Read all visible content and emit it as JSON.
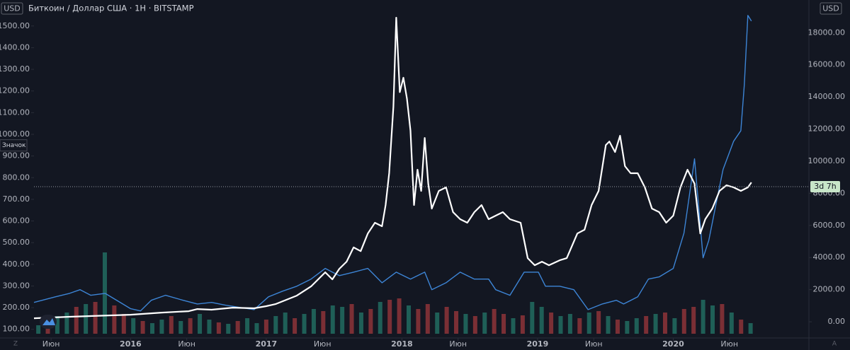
{
  "chart_data": {
    "type": "line",
    "title": "Биткоин / Доллар США · 1H · BITSTAMP",
    "axis_unit": "USD",
    "y2_unit": "USD",
    "xlim": [
      2015.288,
      2021.0
    ],
    "xticks": [
      {
        "value": 2015.414,
        "label": "Июн"
      },
      {
        "value": 2016,
        "label": "2016"
      },
      {
        "value": 2016.414,
        "label": "Июн"
      },
      {
        "value": 2017,
        "label": "2017"
      },
      {
        "value": 2017.414,
        "label": "Июн"
      },
      {
        "value": 2018,
        "label": "2018"
      },
      {
        "value": 2018.414,
        "label": "Июн"
      },
      {
        "value": 2019,
        "label": "2019"
      },
      {
        "value": 2019.414,
        "label": "Июн"
      },
      {
        "value": 2020,
        "label": "2020"
      },
      {
        "value": 2020.414,
        "label": "Июн"
      }
    ],
    "ylim": [
      60,
      1620
    ],
    "yticks": [
      {
        "value": 100,
        "label": "100.00"
      },
      {
        "value": 200,
        "label": "200.00"
      },
      {
        "value": 300,
        "label": "300.00"
      },
      {
        "value": 400,
        "label": "400.00"
      },
      {
        "value": 500,
        "label": "500.00"
      },
      {
        "value": 600,
        "label": "600.00"
      },
      {
        "value": 700,
        "label": "700.00"
      },
      {
        "value": 800,
        "label": "800.00"
      },
      {
        "value": 900,
        "label": "900.00"
      },
      {
        "value": 1000,
        "label": "1000.00"
      },
      {
        "value": 1100,
        "label": "1100.00"
      },
      {
        "value": 1200,
        "label": "1200.00"
      },
      {
        "value": 1300,
        "label": "1300.00"
      },
      {
        "value": 1400,
        "label": "1400.00"
      },
      {
        "value": 1500,
        "label": "1500.00"
      }
    ],
    "y2lim": [
      -1010,
      20040
    ],
    "y2ticks": [
      {
        "value": 0,
        "label": "0.00"
      },
      {
        "value": 2000,
        "label": "2000.00"
      },
      {
        "value": 4000,
        "label": "4000.00"
      },
      {
        "value": 6000,
        "label": "6000.00"
      },
      {
        "value": 8000,
        "label": "8000.00"
      },
      {
        "value": 10000,
        "label": "10000.00"
      },
      {
        "value": 12000,
        "label": "12000.00"
      },
      {
        "value": 14000,
        "label": "14000.00"
      },
      {
        "value": 16000,
        "label": "16000.00"
      },
      {
        "value": 18000,
        "label": "18000.00"
      }
    ],
    "series": [
      {
        "color": "#3d85d6",
        "axis": "y",
        "x": [
          2015.288,
          2015.445,
          2015.55,
          2015.628,
          2015.707,
          2015.812,
          2015.942,
          2016.0,
          2016.073,
          2016.152,
          2016.257,
          2016.387,
          2016.492,
          2016.597,
          2016.702,
          2016.806,
          2016.911,
          2017.016,
          2017.12,
          2017.225,
          2017.33,
          2017.435,
          2017.487,
          2017.539,
          2017.644,
          2017.749,
          2017.853,
          2017.958,
          2018.063,
          2018.168,
          2018.22,
          2018.325,
          2018.429,
          2018.534,
          2018.639,
          2018.691,
          2018.796,
          2018.901,
          2019.006,
          2019.058,
          2019.163,
          2019.267,
          2019.372,
          2019.477,
          2019.581,
          2019.634,
          2019.738,
          2019.817,
          2019.896,
          2020.0,
          2020.079,
          2020.131,
          2020.157,
          2020.184,
          2020.22,
          2020.262,
          2020.314,
          2020.367,
          2020.445,
          2020.498,
          2020.524,
          2020.55,
          2020.576
        ],
        "values": [
          224,
          250,
          266,
          283,
          257,
          266,
          217,
          195,
          185,
          234,
          257,
          234,
          217,
          224,
          211,
          201,
          191,
          250,
          276,
          299,
          332,
          381,
          364,
          348,
          364,
          381,
          315,
          364,
          332,
          364,
          283,
          315,
          364,
          332,
          332,
          283,
          257,
          364,
          364,
          299,
          299,
          283,
          191,
          217,
          234,
          217,
          250,
          332,
          342,
          381,
          544,
          772,
          887,
          691,
          430,
          511,
          674,
          838,
          968,
          1017,
          1229,
          1549,
          1523
        ]
      },
      {
        "color": "#ffffff",
        "axis": "y2",
        "x": [
          2015.288,
          2015.55,
          2016.0,
          2016.23,
          2016.429,
          2016.492,
          2016.597,
          2016.754,
          2016.911,
          2017.0,
          2017.068,
          2017.225,
          2017.33,
          2017.435,
          2017.487,
          2017.539,
          2017.592,
          2017.644,
          2017.696,
          2017.749,
          2017.801,
          2017.853,
          2017.88,
          2017.906,
          2017.937,
          2017.958,
          2017.984,
          2018.011,
          2018.037,
          2018.063,
          2018.089,
          2018.115,
          2018.142,
          2018.168,
          2018.194,
          2018.22,
          2018.272,
          2018.325,
          2018.377,
          2018.429,
          2018.482,
          2018.534,
          2018.587,
          2018.639,
          2018.691,
          2018.744,
          2018.796,
          2018.875,
          2018.927,
          2018.979,
          2019.032,
          2019.084,
          2019.163,
          2019.215,
          2019.293,
          2019.346,
          2019.398,
          2019.45,
          2019.503,
          2019.529,
          2019.571,
          2019.608,
          2019.644,
          2019.686,
          2019.738,
          2019.791,
          2019.843,
          2019.896,
          2019.948,
          2020.0,
          2020.053,
          2020.105,
          2020.157,
          2020.199,
          2020.236,
          2020.288,
          2020.341,
          2020.393,
          2020.445,
          2020.498,
          2020.55,
          2020.576
        ],
        "values": [
          220,
          310,
          440,
          570,
          660,
          790,
          750,
          880,
          840,
          970,
          1100,
          1630,
          2200,
          3080,
          2640,
          3300,
          3740,
          4630,
          4400,
          5500,
          6170,
          5950,
          7270,
          9250,
          13400,
          18940,
          14300,
          15200,
          13900,
          11900,
          7270,
          9470,
          8150,
          11450,
          8600,
          7050,
          8150,
          8370,
          6830,
          6390,
          6170,
          6830,
          7270,
          6390,
          6610,
          6830,
          6390,
          6170,
          3960,
          3520,
          3740,
          3520,
          3830,
          3960,
          5500,
          5730,
          7270,
          8150,
          11010,
          11230,
          10570,
          11590,
          9690,
          9250,
          9250,
          8370,
          7050,
          6830,
          6170,
          6610,
          8370,
          9470,
          8600,
          5500,
          6390,
          7050,
          8150,
          8500,
          8370,
          8150,
          8370,
          8680
        ]
      }
    ],
    "volume": {
      "vlim": [
        0,
        120
      ],
      "up_color": "#1f5f57",
      "down_color": "#7b2f35",
      "x": [
        2015.32,
        2015.39,
        2015.46,
        2015.53,
        2015.6,
        2015.67,
        2015.74,
        2015.81,
        2015.88,
        2015.95,
        2016.02,
        2016.09,
        2016.16,
        2016.23,
        2016.3,
        2016.37,
        2016.44,
        2016.51,
        2016.58,
        2016.65,
        2016.72,
        2016.79,
        2016.86,
        2016.93,
        2017.0,
        2017.07,
        2017.14,
        2017.21,
        2017.28,
        2017.35,
        2017.42,
        2017.49,
        2017.56,
        2017.63,
        2017.7,
        2017.77,
        2017.84,
        2017.91,
        2017.98,
        2018.05,
        2018.12,
        2018.19,
        2018.26,
        2018.33,
        2018.4,
        2018.47,
        2018.54,
        2018.61,
        2018.68,
        2018.75,
        2018.82,
        2018.89,
        2018.96,
        2019.03,
        2019.1,
        2019.17,
        2019.24,
        2019.31,
        2019.38,
        2019.45,
        2019.52,
        2019.59,
        2019.66,
        2019.73,
        2019.8,
        2019.87,
        2019.94,
        2020.01,
        2020.08,
        2020.15,
        2020.22,
        2020.29,
        2020.36,
        2020.43,
        2020.5,
        2020.57
      ],
      "values": [
        12,
        18,
        25,
        30,
        38,
        42,
        45,
        115,
        40,
        28,
        22,
        18,
        15,
        20,
        25,
        18,
        22,
        28,
        20,
        16,
        14,
        18,
        22,
        15,
        20,
        25,
        30,
        22,
        28,
        35,
        32,
        40,
        38,
        42,
        30,
        35,
        45,
        48,
        50,
        40,
        35,
        42,
        30,
        38,
        32,
        28,
        25,
        30,
        35,
        28,
        22,
        26,
        45,
        38,
        30,
        25,
        28,
        22,
        30,
        32,
        25,
        20,
        18,
        22,
        25,
        28,
        30,
        22,
        35,
        38,
        48,
        40,
        42,
        30,
        20,
        15
      ],
      "up": [
        true,
        false,
        true,
        true,
        false,
        true,
        false,
        true,
        false,
        false,
        true,
        false,
        true,
        true,
        false,
        true,
        false,
        true,
        true,
        false,
        true,
        false,
        true,
        true,
        false,
        true,
        true,
        false,
        true,
        true,
        false,
        true,
        true,
        false,
        true,
        false,
        true,
        false,
        false,
        true,
        false,
        false,
        true,
        false,
        false,
        true,
        false,
        true,
        false,
        false,
        true,
        false,
        true,
        true,
        false,
        true,
        true,
        false,
        true,
        false,
        true,
        false,
        true,
        true,
        false,
        true,
        false,
        true,
        false,
        false,
        true,
        true,
        false,
        true,
        false,
        true
      ]
    },
    "price_line": {
      "value": 8414,
      "label": "3d 7h",
      "color": "#c8e6c9"
    },
    "marker": {
      "value": 949,
      "label": "Значок"
    },
    "scale_buttons": [
      "Z",
      "A"
    ]
  }
}
